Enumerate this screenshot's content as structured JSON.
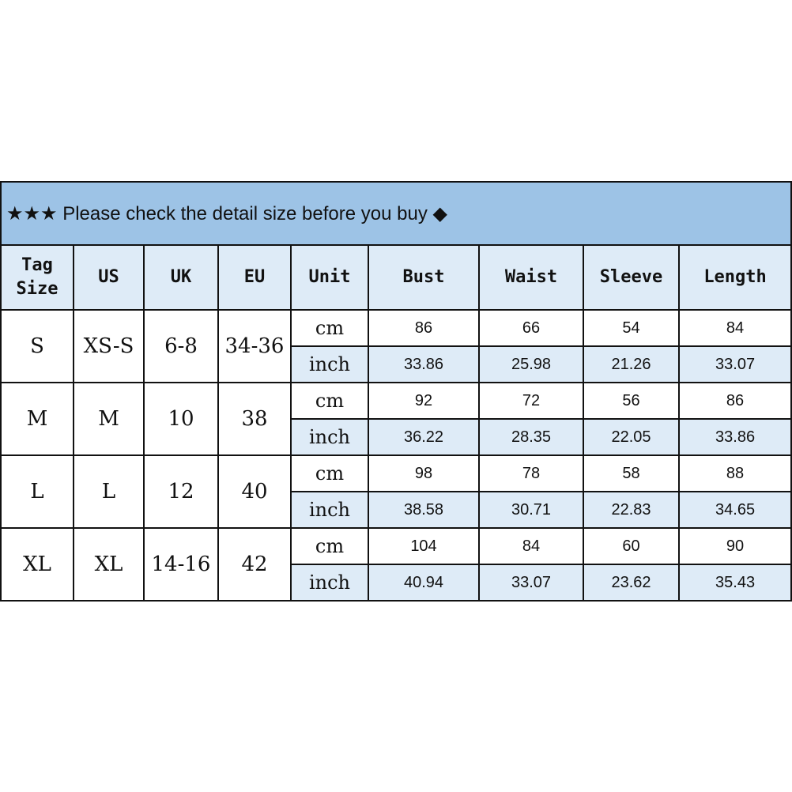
{
  "banner": {
    "stars": "★★★",
    "text": "Please check the detail size before you buy",
    "diamond": "◆"
  },
  "colors": {
    "banner": "#9dc3e6",
    "header": "#deebf7",
    "inch_row": "#deebf7"
  },
  "headers": [
    "Tag Size",
    "US",
    "UK",
    "EU",
    "Unit",
    "Bust",
    "Waist",
    "Sleeve",
    "Length"
  ],
  "headers_split": {
    "tag": "Tag",
    "size": "Size"
  },
  "rows": [
    {
      "tag": "S",
      "us": "XS-S",
      "uk": "6-8",
      "eu": "34-36",
      "cm": {
        "unit": "cm",
        "values": [
          "86",
          "66",
          "54",
          "84"
        ]
      },
      "inch": {
        "unit": "inch",
        "values": [
          "33.86",
          "25.98",
          "21.26",
          "33.07"
        ]
      }
    },
    {
      "tag": "M",
      "us": "M",
      "uk": "10",
      "eu": "38",
      "cm": {
        "unit": "cm",
        "values": [
          "92",
          "72",
          "56",
          "86"
        ]
      },
      "inch": {
        "unit": "inch",
        "values": [
          "36.22",
          "28.35",
          "22.05",
          "33.86"
        ]
      }
    },
    {
      "tag": "L",
      "us": "L",
      "uk": "12",
      "eu": "40",
      "cm": {
        "unit": "cm",
        "values": [
          "98",
          "78",
          "58",
          "88"
        ]
      },
      "inch": {
        "unit": "inch",
        "values": [
          "38.58",
          "30.71",
          "22.83",
          "34.65"
        ]
      }
    },
    {
      "tag": "XL",
      "us": "XL",
      "uk": "14-16",
      "eu": "42",
      "cm": {
        "unit": "cm",
        "values": [
          "104",
          "84",
          "60",
          "90"
        ]
      },
      "inch": {
        "unit": "inch",
        "values": [
          "40.94",
          "33.07",
          "23.62",
          "35.43"
        ]
      }
    }
  ]
}
